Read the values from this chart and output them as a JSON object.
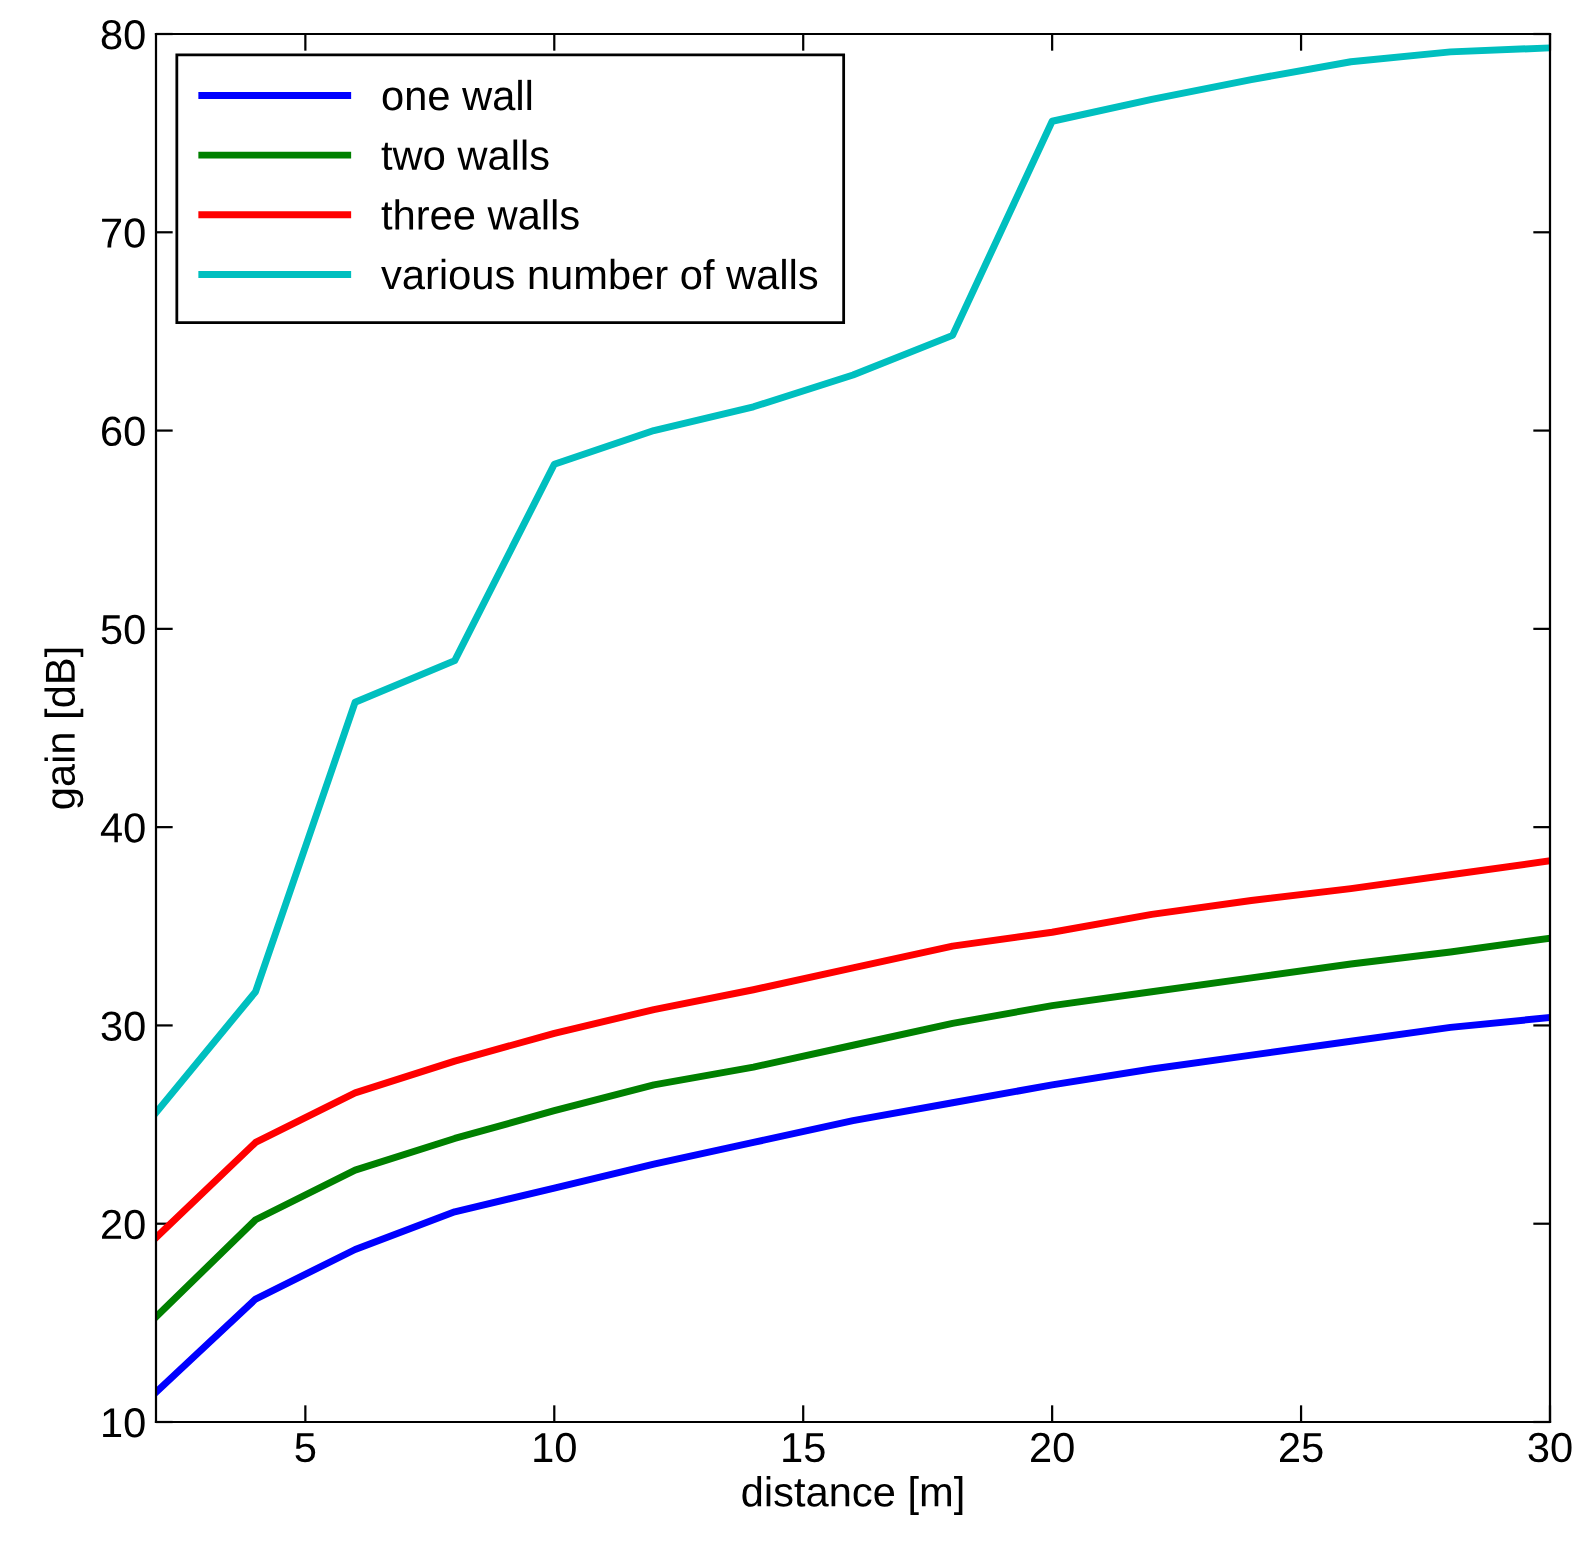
{
  "chart_data": {
    "type": "line",
    "xlabel": "distance [m]",
    "ylabel": "gain [dB]",
    "x": [
      2,
      4,
      6,
      8,
      10,
      12,
      14,
      16,
      18,
      20,
      22,
      24,
      26,
      28,
      30
    ],
    "series": [
      {
        "name": "one wall",
        "color": "#0000ff",
        "values": [
          11.5,
          16.2,
          18.7,
          20.6,
          21.8,
          23.0,
          24.1,
          25.2,
          26.1,
          27.0,
          27.8,
          28.5,
          29.2,
          29.9,
          30.4
        ]
      },
      {
        "name": "two walls",
        "color": "#008000",
        "values": [
          15.3,
          20.2,
          22.7,
          24.3,
          25.7,
          27.0,
          27.9,
          29.0,
          30.1,
          31.0,
          31.7,
          32.4,
          33.1,
          33.7,
          34.4
        ]
      },
      {
        "name": "three walls",
        "color": "#ff0000",
        "values": [
          19.3,
          24.1,
          26.6,
          28.2,
          29.6,
          30.8,
          31.8,
          32.9,
          34.0,
          34.7,
          35.6,
          36.3,
          36.9,
          37.6,
          38.3
        ]
      },
      {
        "name": "various number of walls",
        "color": "#00bfbf",
        "values": [
          25.6,
          31.7,
          46.3,
          48.4,
          58.3,
          60.0,
          61.2,
          62.8,
          64.8,
          75.6,
          76.7,
          77.7,
          78.6,
          79.1,
          79.3
        ]
      }
    ],
    "xlim": [
      2,
      30
    ],
    "ylim": [
      10,
      80
    ],
    "xticks": [
      5,
      10,
      15,
      20,
      25,
      30
    ],
    "yticks": [
      10,
      20,
      30,
      40,
      50,
      60,
      70,
      80
    ],
    "grid": false,
    "legend": "top left",
    "line_style": "solid",
    "marker": "none"
  }
}
